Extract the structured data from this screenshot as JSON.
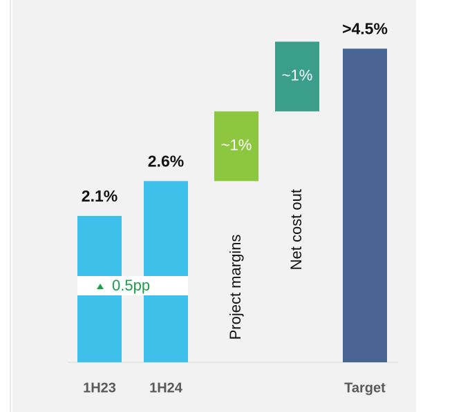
{
  "chart_data": {
    "type": "waterfall",
    "categories": [
      "1H23",
      "1H24",
      null,
      null,
      "Target"
    ],
    "values": [
      2.1,
      2.6,
      1,
      1,
      4.5
    ],
    "value_labels": [
      "2.1%",
      "2.6%",
      "~1%",
      "~1%",
      ">4.5%"
    ],
    "kinds": [
      "total",
      "total",
      "step",
      "step",
      "total"
    ],
    "colors": [
      "#3ec0ea",
      "#3ec0ea",
      "#8dc63f",
      "#3a9e8a",
      "#4a6593"
    ],
    "step_labels": [
      null,
      null,
      "Project margins",
      "Net cost out",
      null
    ],
    "annotation": "0.5pp",
    "annotation_color": "#1aa04a"
  }
}
